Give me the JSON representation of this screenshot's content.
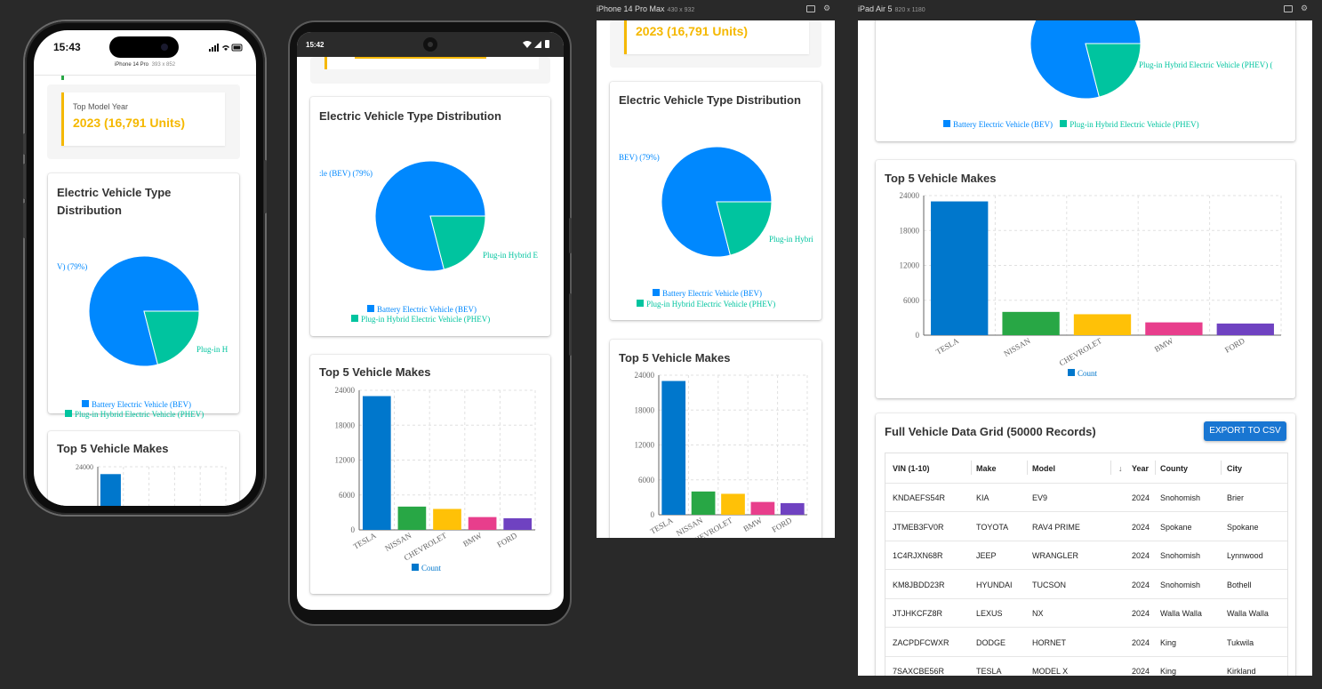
{
  "devices": {
    "iphone14pro": {
      "label": "iPhone 14 Pro",
      "dims": "393 x 852",
      "time": "15:43"
    },
    "android": {
      "time": "15:42"
    },
    "iphone14promax": {
      "label": "iPhone 14 Pro Max",
      "dims": "430 x 932"
    },
    "ipadair5": {
      "label": "iPad Air 5",
      "dims": "820 x 1180"
    }
  },
  "stat": {
    "label": "Top Model Year",
    "value": "2023 (16,791 Units)"
  },
  "pie": {
    "title": "Electric Vehicle Type Distribution",
    "title_line1": "Electric Vehicle Type",
    "title_line2": "Distribution",
    "slices": [
      {
        "name": "Battery Electric Vehicle (BEV)",
        "percent": 79,
        "color": "#0088FE"
      },
      {
        "name": "Plug-in Hybrid Electric Vehicle (PHEV)",
        "percent": 21,
        "color": "#00C49F"
      }
    ],
    "labels": {
      "iphone_bev": "V) (79%)",
      "iphone_phev": "Plug-in H",
      "android_bev": ":le (BEV) (79%)",
      "android_phev": "Plug-in Hybrid E",
      "promax_bev": "BEV) (79%)",
      "promax_phev": "Plug-in Hybri",
      "ipad_phev": "Plug-in Hybrid Electric Vehicle (PHEV) ("
    }
  },
  "bar": {
    "title": "Top 5 Vehicle Makes",
    "legend": "Count",
    "color_count": "#0077cc"
  },
  "chart_data": [
    {
      "type": "pie",
      "title": "Electric Vehicle Type Distribution",
      "categories": [
        "Battery Electric Vehicle (BEV)",
        "Plug-in Hybrid Electric Vehicle (PHEV)"
      ],
      "values": [
        79,
        21
      ]
    },
    {
      "type": "bar",
      "title": "Top 5 Vehicle Makes",
      "categories": [
        "TESLA",
        "NISSAN",
        "CHEVROLET",
        "BMW",
        "FORD"
      ],
      "series": [
        {
          "name": "Count",
          "values": [
            23000,
            4000,
            3600,
            2200,
            2000
          ]
        }
      ],
      "colors": [
        "#0077cc",
        "#28a745",
        "#ffc107",
        "#e83e8c",
        "#6f42c1"
      ],
      "ylim": [
        0,
        24000
      ],
      "yticks": [
        0,
        6000,
        12000,
        18000,
        24000
      ],
      "grid": true
    }
  ],
  "grid": {
    "title": "Full Vehicle Data Grid (50000 Records)",
    "export_label": "EXPORT TO CSV",
    "columns": [
      "VIN (1-10)",
      "Make",
      "Model",
      "Year",
      "County",
      "City"
    ],
    "rows": [
      [
        "KNDAEFS54R",
        "KIA",
        "EV9",
        "2024",
        "Snohomish",
        "Brier"
      ],
      [
        "JTMEB3FV0R",
        "TOYOTA",
        "RAV4 PRIME",
        "2024",
        "Spokane",
        "Spokane"
      ],
      [
        "1C4RJXN68R",
        "JEEP",
        "WRANGLER",
        "2024",
        "Snohomish",
        "Lynnwood"
      ],
      [
        "KM8JBDD23R",
        "HYUNDAI",
        "TUCSON",
        "2024",
        "Snohomish",
        "Bothell"
      ],
      [
        "JTJHKCFZ8R",
        "LEXUS",
        "NX",
        "2024",
        "Walla Walla",
        "Walla Walla"
      ],
      [
        "ZACPDFCWXR",
        "DODGE",
        "HORNET",
        "2024",
        "King",
        "Tukwila"
      ],
      [
        "7SAXCBE56R",
        "TESLA",
        "MODEL X",
        "2024",
        "King",
        "Kirkland"
      ]
    ]
  }
}
